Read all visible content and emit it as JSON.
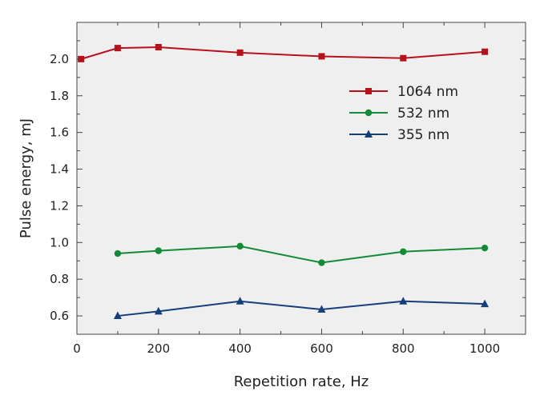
{
  "chart_data": {
    "type": "line",
    "xlabel": "Repetition rate, Hz",
    "ylabel": "Pulse energy, mJ",
    "xlim": [
      0,
      1100
    ],
    "ylim": [
      0.5,
      2.2
    ],
    "xticks": [
      0,
      200,
      400,
      600,
      800,
      1000
    ],
    "yticks": [
      0.6,
      0.8,
      1.0,
      1.2,
      1.4,
      1.6,
      1.8,
      2.0
    ],
    "ytick_labels": [
      "0.6",
      "0.8",
      "1.0",
      "1.2",
      "1.4",
      "1.6",
      "1.8",
      "2.0"
    ],
    "grid": false,
    "background": "#efefef",
    "legend_position": "top-right",
    "series": [
      {
        "name": "1064 nm",
        "color": "#b5121b",
        "marker": "square",
        "x": [
          10,
          100,
          200,
          400,
          600,
          800,
          1000
        ],
        "y": [
          2.0,
          2.06,
          2.065,
          2.035,
          2.015,
          2.005,
          2.04
        ]
      },
      {
        "name": "532 nm",
        "color": "#138a36",
        "marker": "circle",
        "x": [
          100,
          200,
          400,
          600,
          800,
          1000
        ],
        "y": [
          0.94,
          0.955,
          0.98,
          0.89,
          0.95,
          0.97
        ]
      },
      {
        "name": "355 nm",
        "color": "#143f7a",
        "marker": "triangle",
        "x": [
          100,
          200,
          400,
          600,
          800,
          1000
        ],
        "y": [
          0.6,
          0.625,
          0.68,
          0.635,
          0.68,
          0.665
        ]
      }
    ]
  }
}
